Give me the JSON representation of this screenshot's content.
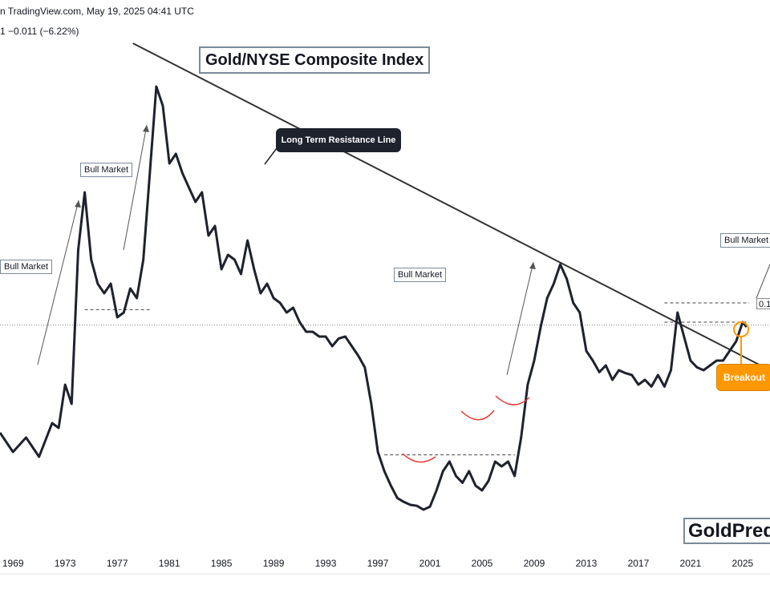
{
  "header": {
    "line1": "n TradingView.com, May 19, 2025 04:41 UTC",
    "line2": "1  −0.011 (−6.22%)"
  },
  "chart_data": {
    "type": "line",
    "title": "Gold/NYSE Composite Index",
    "xlabel": "",
    "ylabel": "",
    "x_ticks": [
      "1969",
      "1973",
      "1977",
      "1981",
      "1985",
      "1989",
      "1993",
      "1997",
      "2001",
      "2005",
      "2009",
      "2013",
      "2017",
      "2021",
      "2025"
    ],
    "series": [
      {
        "x": [
          1968.0,
          1969.0,
          1970.0,
          1971.0,
          1972.0,
          1972.5,
          1973.0,
          1973.5,
          1974.0,
          1974.5,
          1975.0,
          1975.5,
          1976.0,
          1976.5,
          1977.0,
          1977.5,
          1978.0,
          1978.5,
          1979.0,
          1979.5,
          1980.0,
          1980.5,
          1981.0,
          1981.5,
          1982.0,
          1982.5,
          1983.0,
          1983.5,
          1984.0,
          1984.5,
          1985.0,
          1985.5,
          1986.0,
          1986.5,
          1987.0,
          1987.5,
          1988.0,
          1988.5,
          1989.0,
          1989.5,
          1990.0,
          1990.5,
          1991.0,
          1991.5,
          1992.0,
          1992.5,
          1993.0,
          1993.5,
          1994.0,
          1994.5,
          1995.0,
          1995.5,
          1996.0,
          1996.5,
          1997.0,
          1997.5,
          1998.0,
          1998.5,
          1999.0,
          1999.5,
          2000.0,
          2000.5,
          2001.0,
          2001.5,
          2002.0,
          2002.5,
          2003.0,
          2003.5,
          2004.0,
          2004.5,
          2005.0,
          2005.5,
          2006.0,
          2006.5,
          2007.0,
          2007.5,
          2008.0,
          2008.5,
          2009.0,
          2009.5,
          2010.0,
          2010.5,
          2011.0,
          2011.5,
          2012.0,
          2012.5,
          2013.0,
          2013.5,
          2014.0,
          2014.5,
          2015.0,
          2015.5,
          2016.0,
          2016.5,
          2017.0,
          2017.5,
          2018.0,
          2018.5,
          2019.0,
          2019.5,
          2020.0,
          2020.5,
          2021.0,
          2021.5,
          2022.0,
          2022.5,
          2023.0,
          2023.5,
          2024.0,
          2024.5,
          2025.0,
          2025.3
        ],
        "values": [
          0.15,
          0.13,
          0.145,
          0.125,
          0.16,
          0.155,
          0.2,
          0.18,
          0.34,
          0.4,
          0.33,
          0.305,
          0.295,
          0.305,
          0.27,
          0.275,
          0.3,
          0.29,
          0.33,
          0.42,
          0.51,
          0.49,
          0.43,
          0.44,
          0.42,
          0.405,
          0.39,
          0.4,
          0.355,
          0.365,
          0.32,
          0.335,
          0.33,
          0.315,
          0.35,
          0.32,
          0.295,
          0.305,
          0.29,
          0.285,
          0.275,
          0.28,
          0.265,
          0.255,
          0.255,
          0.25,
          0.25,
          0.24,
          0.248,
          0.25,
          0.24,
          0.23,
          0.218,
          0.18,
          0.13,
          0.11,
          0.095,
          0.082,
          0.078,
          0.075,
          0.074,
          0.07,
          0.073,
          0.09,
          0.11,
          0.12,
          0.105,
          0.098,
          0.11,
          0.095,
          0.09,
          0.1,
          0.12,
          0.115,
          0.12,
          0.105,
          0.145,
          0.2,
          0.225,
          0.26,
          0.29,
          0.305,
          0.325,
          0.31,
          0.285,
          0.275,
          0.235,
          0.225,
          0.213,
          0.22,
          0.205,
          0.215,
          0.212,
          0.21,
          0.2,
          0.205,
          0.198,
          0.21,
          0.198,
          0.215,
          0.275,
          0.25,
          0.225,
          0.218,
          0.215,
          0.22,
          0.225,
          0.225,
          0.235,
          0.245,
          0.265,
          0.26
        ]
      }
    ],
    "ylim": [
      0.0,
      0.55
    ],
    "xlim": [
      1968.0,
      2027.1
    ],
    "resistance_line": {
      "x": [
        1978.2,
        2027.1
      ],
      "values": [
        0.555,
        0.215
      ]
    },
    "reference_levels": [
      {
        "value": 0.278,
        "x_from": 1974.5,
        "x_to": 1979.5,
        "style": "dashed"
      },
      {
        "value": 0.127,
        "x_from": 1997.5,
        "x_to": 2007.5,
        "style": "dashed"
      },
      {
        "value": 0.285,
        "x_from": 2019.0,
        "x_to": 2025.5,
        "style": "dashed"
      },
      {
        "value": 0.265,
        "x_from": 2019.0,
        "x_to": 2025.5,
        "style": "dashed"
      },
      {
        "value": 0.262,
        "x_from": 1968.0,
        "x_to": 2027.1,
        "style": "dotted"
      }
    ],
    "annotations": {
      "bull_market_labels": [
        "Bull Market",
        "Bull Market",
        "Bull Market",
        "Bull Market"
      ],
      "resistance_callout": "Long Term Resistance Line",
      "breakout_label": "Breakout",
      "price_tag": "0.1"
    },
    "grid": false,
    "legend": "none"
  },
  "brand": {
    "text": "GoldPredict"
  },
  "colors": {
    "line": "#1e222d",
    "resistance": "#333333",
    "callout_bg": "#1e222d",
    "breakout": "#ff9800",
    "arc": "#e53935",
    "box_border": "#7a8a99"
  }
}
